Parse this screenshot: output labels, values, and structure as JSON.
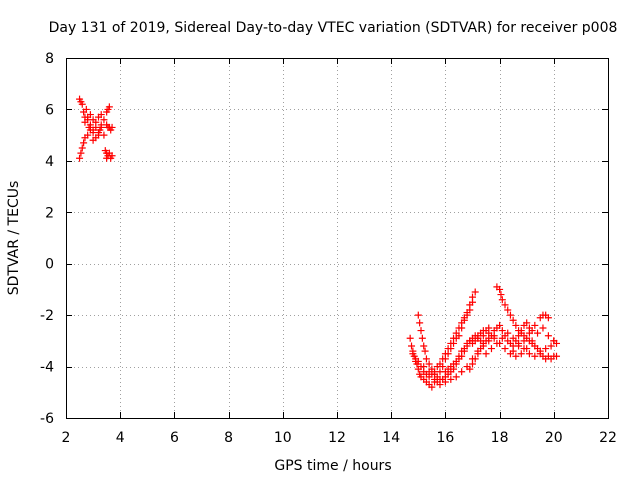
{
  "chart_data": {
    "type": "scatter",
    "title": "Day 131 of 2019, Sidereal Day-to-day VTEC variation (SDTVAR) for receiver p008",
    "xlabel": "GPS time / hours",
    "ylabel": "SDTVAR / TECUs",
    "xlim": [
      2,
      22
    ],
    "ylim": [
      -6,
      8
    ],
    "x_ticks": [
      "2",
      "4",
      "6",
      "8",
      "10",
      "12",
      "14",
      "16",
      "18",
      "20",
      "22"
    ],
    "y_ticks": [
      "-6",
      "-4",
      "-2",
      "0",
      "2",
      "4",
      "6",
      "8"
    ],
    "grid": true,
    "marker": "+",
    "color": "#ff0000",
    "series": [
      {
        "points": [
          [
            2.5,
            6.4
          ],
          [
            2.55,
            6.3
          ],
          [
            2.6,
            6.2
          ],
          [
            2.65,
            5.9
          ],
          [
            2.7,
            5.7
          ],
          [
            2.8,
            5.6
          ],
          [
            2.9,
            5.4
          ],
          [
            3.0,
            5.2
          ],
          [
            3.1,
            5.3
          ],
          [
            3.2,
            5.1
          ],
          [
            3.3,
            5.3
          ],
          [
            3.4,
            5.0
          ],
          [
            2.5,
            4.1
          ],
          [
            2.55,
            4.3
          ],
          [
            2.6,
            4.5
          ],
          [
            2.65,
            4.7
          ],
          [
            2.7,
            4.9
          ],
          [
            2.8,
            5.0
          ],
          [
            2.9,
            5.2
          ],
          [
            3.0,
            4.8
          ],
          [
            3.1,
            4.9
          ],
          [
            3.2,
            5.0
          ],
          [
            3.3,
            5.4
          ],
          [
            3.4,
            5.6
          ],
          [
            3.5,
            5.9
          ],
          [
            3.55,
            6.0
          ],
          [
            3.6,
            6.1
          ],
          [
            2.7,
            5.5
          ],
          [
            2.8,
            5.7
          ],
          [
            2.9,
            5.8
          ],
          [
            3.0,
            5.6
          ],
          [
            3.1,
            5.5
          ],
          [
            3.2,
            5.7
          ],
          [
            3.3,
            5.8
          ],
          [
            3.5,
            5.4
          ],
          [
            3.55,
            5.3
          ],
          [
            3.6,
            5.3
          ],
          [
            3.65,
            5.2
          ],
          [
            3.7,
            5.3
          ],
          [
            3.45,
            4.4
          ],
          [
            3.5,
            4.3
          ],
          [
            3.55,
            4.2
          ],
          [
            3.6,
            4.3
          ],
          [
            3.65,
            4.1
          ],
          [
            3.7,
            4.2
          ],
          [
            3.5,
            4.1
          ],
          [
            3.0,
            5.1
          ],
          [
            2.85,
            5.3
          ],
          [
            3.25,
            5.2
          ],
          [
            2.75,
            6.0
          ]
        ]
      },
      {
        "points": [
          [
            14.8,
            -3.4
          ],
          [
            14.85,
            -3.6
          ],
          [
            14.9,
            -3.8
          ],
          [
            14.95,
            -3.9
          ],
          [
            15.0,
            -4.1
          ],
          [
            15.05,
            -4.3
          ],
          [
            15.1,
            -4.4
          ],
          [
            15.2,
            -4.5
          ],
          [
            15.3,
            -4.6
          ],
          [
            15.4,
            -4.7
          ],
          [
            15.5,
            -4.8
          ],
          [
            15.6,
            -4.6
          ],
          [
            15.7,
            -4.6
          ],
          [
            15.8,
            -4.5
          ],
          [
            15.9,
            -4.5
          ],
          [
            16.0,
            -4.4
          ],
          [
            16.1,
            -4.3
          ],
          [
            16.2,
            -4.2
          ],
          [
            16.3,
            -4.1
          ],
          [
            16.4,
            -3.9
          ],
          [
            16.5,
            -3.7
          ],
          [
            16.6,
            -3.6
          ],
          [
            16.7,
            -3.4
          ],
          [
            16.8,
            -3.2
          ],
          [
            16.9,
            -3.0
          ],
          [
            17.0,
            -2.9
          ],
          [
            17.1,
            -2.8
          ],
          [
            17.2,
            -2.8
          ],
          [
            17.3,
            -2.7
          ],
          [
            17.4,
            -2.6
          ],
          [
            17.5,
            -2.6
          ],
          [
            17.6,
            -2.5
          ],
          [
            15.0,
            -2.0
          ],
          [
            15.05,
            -2.3
          ],
          [
            15.1,
            -2.6
          ],
          [
            15.15,
            -2.9
          ],
          [
            15.2,
            -3.2
          ],
          [
            15.25,
            -3.4
          ],
          [
            15.3,
            -3.7
          ],
          [
            15.4,
            -3.9
          ],
          [
            15.5,
            -4.1
          ],
          [
            15.6,
            -4.3
          ],
          [
            15.7,
            -4.4
          ],
          [
            15.8,
            -4.2
          ],
          [
            15.9,
            -4.0
          ],
          [
            16.0,
            -3.7
          ],
          [
            16.1,
            -3.5
          ],
          [
            16.2,
            -3.3
          ],
          [
            16.3,
            -3.1
          ],
          [
            16.4,
            -2.9
          ],
          [
            16.5,
            -2.8
          ],
          [
            16.6,
            -2.5
          ],
          [
            16.7,
            -2.2
          ],
          [
            16.8,
            -2.0
          ],
          [
            16.9,
            -1.8
          ],
          [
            17.0,
            -1.5
          ],
          [
            14.7,
            -2.9
          ],
          [
            14.75,
            -3.2
          ],
          [
            14.8,
            -3.5
          ],
          [
            14.9,
            -3.7
          ],
          [
            15.0,
            -3.8
          ],
          [
            15.1,
            -4.0
          ],
          [
            15.2,
            -4.2
          ],
          [
            15.3,
            -4.3
          ],
          [
            15.4,
            -4.4
          ],
          [
            15.5,
            -4.3
          ],
          [
            15.6,
            -4.2
          ],
          [
            15.7,
            -4.0
          ],
          [
            15.8,
            -3.9
          ],
          [
            15.9,
            -3.7
          ],
          [
            16.0,
            -3.5
          ],
          [
            16.1,
            -3.3
          ],
          [
            16.2,
            -3.1
          ],
          [
            16.3,
            -2.9
          ],
          [
            16.4,
            -2.7
          ],
          [
            16.5,
            -2.5
          ],
          [
            16.6,
            -2.3
          ],
          [
            16.7,
            -2.1
          ],
          [
            16.8,
            -1.9
          ],
          [
            16.9,
            -1.6
          ],
          [
            17.0,
            -1.3
          ],
          [
            17.1,
            -1.1
          ],
          [
            16.0,
            -4.2
          ],
          [
            16.1,
            -4.1
          ],
          [
            16.2,
            -4.0
          ],
          [
            16.3,
            -3.9
          ],
          [
            16.4,
            -3.8
          ],
          [
            16.5,
            -3.6
          ],
          [
            16.6,
            -3.4
          ],
          [
            16.7,
            -3.3
          ],
          [
            16.8,
            -3.1
          ],
          [
            16.9,
            -3.0
          ],
          [
            17.0,
            -3.1
          ],
          [
            17.1,
            -3.0
          ],
          [
            17.2,
            -2.9
          ],
          [
            17.3,
            -3.0
          ],
          [
            16.9,
            -4.1
          ],
          [
            17.0,
            -3.9
          ],
          [
            17.1,
            -3.7
          ],
          [
            17.2,
            -3.5
          ],
          [
            17.3,
            -3.3
          ],
          [
            17.4,
            -3.1
          ],
          [
            17.5,
            -3.0
          ],
          [
            17.6,
            -2.9
          ],
          [
            17.7,
            -2.8
          ],
          [
            17.8,
            -2.6
          ],
          [
            17.9,
            -2.5
          ],
          [
            18.0,
            -2.4
          ],
          [
            18.1,
            -2.6
          ],
          [
            18.2,
            -2.8
          ],
          [
            18.3,
            -3.0
          ],
          [
            18.4,
            -3.1
          ],
          [
            18.5,
            -3.2
          ],
          [
            18.6,
            -3.0
          ],
          [
            18.7,
            -2.8
          ],
          [
            18.8,
            -2.6
          ],
          [
            18.9,
            -2.4
          ],
          [
            19.0,
            -2.3
          ],
          [
            19.1,
            -2.5
          ],
          [
            19.2,
            -2.6
          ],
          [
            17.9,
            -0.9
          ],
          [
            18.0,
            -1.0
          ],
          [
            18.05,
            -1.2
          ],
          [
            18.1,
            -1.4
          ],
          [
            18.2,
            -1.6
          ],
          [
            18.3,
            -1.8
          ],
          [
            18.4,
            -2.0
          ],
          [
            18.5,
            -2.2
          ],
          [
            18.6,
            -2.4
          ],
          [
            18.7,
            -2.6
          ],
          [
            18.8,
            -2.7
          ],
          [
            18.9,
            -2.8
          ],
          [
            19.0,
            -2.9
          ],
          [
            19.1,
            -3.0
          ],
          [
            19.2,
            -3.1
          ],
          [
            19.3,
            -3.2
          ],
          [
            19.4,
            -3.3
          ],
          [
            19.5,
            -3.4
          ],
          [
            19.6,
            -3.6
          ],
          [
            19.7,
            -3.7
          ],
          [
            19.8,
            -3.6
          ],
          [
            19.9,
            -3.7
          ],
          [
            20.0,
            -3.6
          ],
          [
            20.1,
            -3.6
          ],
          [
            17.0,
            -3.0
          ],
          [
            17.2,
            -2.9
          ],
          [
            17.4,
            -2.8
          ],
          [
            17.6,
            -2.7
          ],
          [
            17.8,
            -2.9
          ],
          [
            18.0,
            -3.1
          ],
          [
            18.2,
            -3.3
          ],
          [
            18.4,
            -3.5
          ],
          [
            18.6,
            -3.6
          ],
          [
            18.8,
            -3.5
          ],
          [
            19.0,
            -3.3
          ],
          [
            19.2,
            -3.0
          ],
          [
            19.4,
            -2.7
          ],
          [
            19.6,
            -2.5
          ],
          [
            19.8,
            -2.8
          ],
          [
            20.0,
            -3.0
          ],
          [
            20.1,
            -3.1
          ],
          [
            18.5,
            -3.4
          ],
          [
            18.7,
            -3.2
          ],
          [
            18.9,
            -3.0
          ],
          [
            19.1,
            -2.7
          ],
          [
            19.3,
            -2.4
          ],
          [
            19.5,
            -2.1
          ],
          [
            19.6,
            -2.0
          ],
          [
            19.7,
            -2.0
          ],
          [
            19.8,
            -2.1
          ],
          [
            17.5,
            -3.5
          ],
          [
            17.7,
            -3.3
          ],
          [
            17.9,
            -3.1
          ],
          [
            18.1,
            -2.9
          ],
          [
            18.3,
            -2.7
          ],
          [
            18.5,
            -2.9
          ],
          [
            18.7,
            -3.1
          ],
          [
            18.9,
            -3.3
          ],
          [
            19.1,
            -3.5
          ],
          [
            19.3,
            -3.6
          ],
          [
            19.5,
            -3.5
          ],
          [
            19.7,
            -3.3
          ],
          [
            19.9,
            -3.2
          ],
          [
            20.0,
            -3.0
          ],
          [
            15.2,
            -4.0
          ],
          [
            15.4,
            -4.2
          ],
          [
            15.6,
            -4.5
          ],
          [
            15.8,
            -4.7
          ],
          [
            16.0,
            -4.6
          ],
          [
            16.2,
            -4.5
          ],
          [
            16.4,
            -4.4
          ],
          [
            16.6,
            -4.2
          ],
          [
            16.8,
            -4.0
          ],
          [
            17.0,
            -3.7
          ],
          [
            17.2,
            -3.4
          ],
          [
            17.4,
            -3.2
          ],
          [
            17.6,
            -3.0
          ],
          [
            17.8,
            -2.8
          ]
        ]
      }
    ]
  }
}
